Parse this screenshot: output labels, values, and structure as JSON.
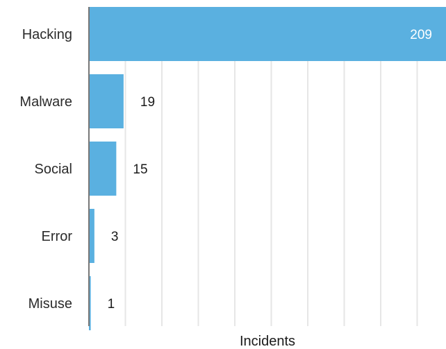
{
  "chart_data": {
    "type": "bar",
    "orientation": "horizontal",
    "categories": [
      "Hacking",
      "Malware",
      "Social",
      "Error",
      "Misuse"
    ],
    "values": [
      209,
      19,
      15,
      3,
      1
    ],
    "title": "",
    "xlabel": "Incidents",
    "ylabel": "",
    "xlim": [
      0,
      200
    ],
    "grid": true,
    "bar_color": "#5ab0e0",
    "grid_color": "#e6e6e6",
    "axis_color": "#777777"
  }
}
